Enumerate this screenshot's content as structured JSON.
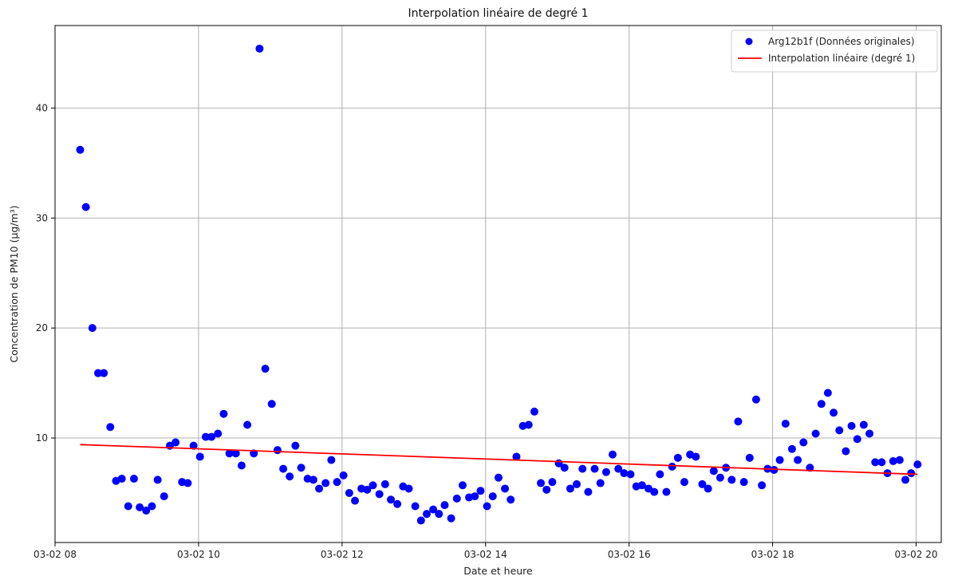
{
  "chart_data": {
    "type": "scatter",
    "title": "Interpolation linéaire de degré 1",
    "xlabel": "Date et heure",
    "ylabel": "Concentration de PM10 (µg/m³)",
    "xlim": [
      8.0,
      20.35
    ],
    "ylim": [
      0.5,
      47.5
    ],
    "grid": true,
    "legend_position": "top-right",
    "x_ticks": [
      8,
      10,
      12,
      14,
      16,
      18,
      20
    ],
    "x_tick_labels": [
      "03-02 08",
      "03-02 10",
      "03-02 12",
      "03-02 14",
      "03-02 16",
      "03-02 18",
      "03-02 20"
    ],
    "y_ticks": [
      10,
      20,
      30,
      40
    ],
    "y_tick_labels": [
      "10",
      "20",
      "30",
      "40"
    ],
    "series": [
      {
        "name": "Arg12b1f (Données originales)",
        "kind": "scatter",
        "color": "#0000ff",
        "points": [
          [
            8.35,
            36.2
          ],
          [
            8.43,
            31.0
          ],
          [
            8.52,
            20.0
          ],
          [
            8.6,
            15.9
          ],
          [
            8.68,
            15.9
          ],
          [
            8.77,
            11.0
          ],
          [
            8.85,
            6.1
          ],
          [
            8.93,
            6.3
          ],
          [
            9.02,
            3.8
          ],
          [
            9.1,
            6.3
          ],
          [
            9.18,
            3.7
          ],
          [
            9.27,
            3.4
          ],
          [
            9.35,
            3.8
          ],
          [
            9.43,
            6.2
          ],
          [
            9.52,
            4.7
          ],
          [
            9.6,
            9.3
          ],
          [
            9.68,
            9.6
          ],
          [
            9.77,
            6.0
          ],
          [
            9.85,
            5.9
          ],
          [
            9.93,
            9.3
          ],
          [
            10.02,
            8.3
          ],
          [
            10.1,
            10.1
          ],
          [
            10.18,
            10.1
          ],
          [
            10.27,
            10.4
          ],
          [
            10.35,
            12.2
          ],
          [
            10.43,
            8.6
          ],
          [
            10.52,
            8.6
          ],
          [
            10.6,
            7.5
          ],
          [
            10.68,
            11.2
          ],
          [
            10.77,
            8.6
          ],
          [
            10.85,
            45.4
          ],
          [
            10.93,
            16.3
          ],
          [
            11.02,
            13.1
          ],
          [
            11.1,
            8.9
          ],
          [
            11.18,
            7.2
          ],
          [
            11.27,
            6.5
          ],
          [
            11.35,
            9.3
          ],
          [
            11.43,
            7.3
          ],
          [
            11.52,
            6.3
          ],
          [
            11.6,
            6.2
          ],
          [
            11.68,
            5.4
          ],
          [
            11.77,
            5.9
          ],
          [
            11.85,
            8.0
          ],
          [
            11.93,
            6.0
          ],
          [
            12.02,
            6.6
          ],
          [
            12.1,
            5.0
          ],
          [
            12.18,
            4.3
          ],
          [
            12.27,
            5.4
          ],
          [
            12.35,
            5.3
          ],
          [
            12.43,
            5.7
          ],
          [
            12.52,
            4.9
          ],
          [
            12.6,
            5.8
          ],
          [
            12.68,
            4.4
          ],
          [
            12.77,
            4.0
          ],
          [
            12.85,
            5.6
          ],
          [
            12.93,
            5.4
          ],
          [
            13.02,
            3.8
          ],
          [
            13.1,
            2.5
          ],
          [
            13.18,
            3.1
          ],
          [
            13.27,
            3.5
          ],
          [
            13.35,
            3.1
          ],
          [
            13.43,
            3.9
          ],
          [
            13.52,
            2.7
          ],
          [
            13.6,
            4.5
          ],
          [
            13.68,
            5.7
          ],
          [
            13.77,
            4.6
          ],
          [
            13.85,
            4.7
          ],
          [
            13.93,
            5.2
          ],
          [
            14.02,
            3.8
          ],
          [
            14.1,
            4.7
          ],
          [
            14.18,
            6.4
          ],
          [
            14.27,
            5.4
          ],
          [
            14.35,
            4.4
          ],
          [
            14.43,
            8.3
          ],
          [
            14.52,
            11.1
          ],
          [
            14.6,
            11.2
          ],
          [
            14.68,
            12.4
          ],
          [
            14.77,
            5.9
          ],
          [
            14.85,
            5.3
          ],
          [
            14.93,
            6.0
          ],
          [
            15.02,
            7.7
          ],
          [
            15.1,
            7.3
          ],
          [
            15.18,
            5.4
          ],
          [
            15.27,
            5.8
          ],
          [
            15.35,
            7.2
          ],
          [
            15.43,
            5.1
          ],
          [
            15.52,
            7.2
          ],
          [
            15.6,
            5.9
          ],
          [
            15.68,
            6.9
          ],
          [
            15.77,
            8.5
          ],
          [
            15.85,
            7.2
          ],
          [
            15.93,
            6.8
          ],
          [
            16.02,
            6.7
          ],
          [
            16.1,
            5.6
          ],
          [
            16.18,
            5.7
          ],
          [
            16.27,
            5.4
          ],
          [
            16.35,
            5.1
          ],
          [
            16.43,
            6.7
          ],
          [
            16.52,
            5.1
          ],
          [
            16.6,
            7.4
          ],
          [
            16.68,
            8.2
          ],
          [
            16.77,
            6.0
          ],
          [
            16.85,
            8.5
          ],
          [
            16.93,
            8.3
          ],
          [
            17.02,
            5.8
          ],
          [
            17.1,
            5.4
          ],
          [
            17.18,
            7.0
          ],
          [
            17.27,
            6.4
          ],
          [
            17.35,
            7.3
          ],
          [
            17.43,
            6.2
          ],
          [
            17.52,
            11.5
          ],
          [
            17.6,
            6.0
          ],
          [
            17.68,
            8.2
          ],
          [
            17.77,
            13.5
          ],
          [
            17.85,
            5.7
          ],
          [
            17.93,
            7.2
          ],
          [
            18.02,
            7.1
          ],
          [
            18.1,
            8.0
          ],
          [
            18.18,
            11.3
          ],
          [
            18.27,
            9.0
          ],
          [
            18.35,
            8.0
          ],
          [
            18.43,
            9.6
          ],
          [
            18.52,
            7.3
          ],
          [
            18.6,
            10.4
          ],
          [
            18.68,
            13.1
          ],
          [
            18.77,
            14.1
          ],
          [
            18.85,
            12.3
          ],
          [
            18.93,
            10.7
          ],
          [
            19.02,
            8.8
          ],
          [
            19.1,
            11.1
          ],
          [
            19.18,
            9.9
          ],
          [
            19.27,
            11.2
          ],
          [
            19.35,
            10.4
          ],
          [
            19.43,
            7.8
          ],
          [
            19.52,
            7.8
          ],
          [
            19.6,
            6.8
          ],
          [
            19.68,
            7.9
          ],
          [
            19.77,
            8.0
          ],
          [
            19.85,
            6.2
          ],
          [
            19.93,
            6.8
          ],
          [
            20.02,
            7.6
          ]
        ]
      },
      {
        "name": "Interpolation linéaire (degré 1)",
        "kind": "line",
        "color": "#ff0000",
        "points": [
          [
            8.35,
            9.4
          ],
          [
            20.02,
            6.7
          ]
        ]
      }
    ]
  }
}
